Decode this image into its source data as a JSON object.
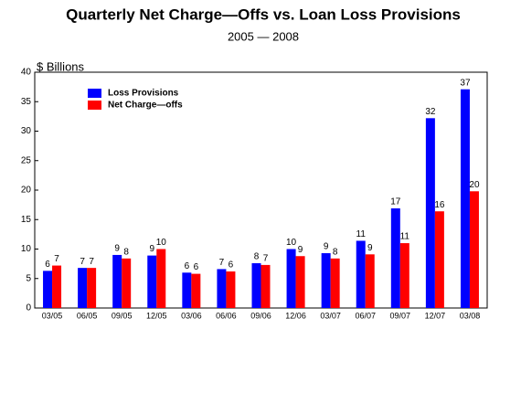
{
  "chart_data": {
    "type": "bar",
    "title": "Quarterly Net Charge—Offs vs. Loan Loss Provisions",
    "subtitle": "2005 — 2008",
    "y_label": "$ Billions",
    "categories": [
      "03/05",
      "06/05",
      "09/05",
      "12/05",
      "03/06",
      "06/06",
      "09/06",
      "12/06",
      "03/07",
      "06/07",
      "09/07",
      "12/07",
      "03/08"
    ],
    "series": [
      {
        "name": "Loss Provisions",
        "color": "#0000ff",
        "values": [
          6.3,
          6.8,
          9.0,
          8.9,
          6.0,
          6.6,
          7.6,
          10.0,
          9.3,
          11.4,
          16.9,
          32.2,
          37.1
        ],
        "value_labels": [
          "6",
          "7",
          "9",
          "9",
          "6",
          "7",
          "8",
          "10",
          "9",
          "11",
          "17",
          "32",
          "37"
        ]
      },
      {
        "name": "Net Charge—offs",
        "color": "#ff0000",
        "values": [
          7.2,
          6.8,
          8.4,
          10.0,
          5.8,
          6.2,
          7.3,
          8.8,
          8.4,
          9.1,
          11.0,
          16.4,
          19.8
        ],
        "value_labels": [
          "7",
          "7",
          "8",
          "10",
          "6",
          "6",
          "7",
          "9",
          "8",
          "9",
          "11",
          "16",
          "20"
        ]
      }
    ],
    "ylim": [
      0,
      40
    ],
    "yticks": [
      0,
      5,
      10,
      15,
      20,
      25,
      30,
      35,
      40
    ],
    "legend": "upper-left",
    "grid": false
  }
}
